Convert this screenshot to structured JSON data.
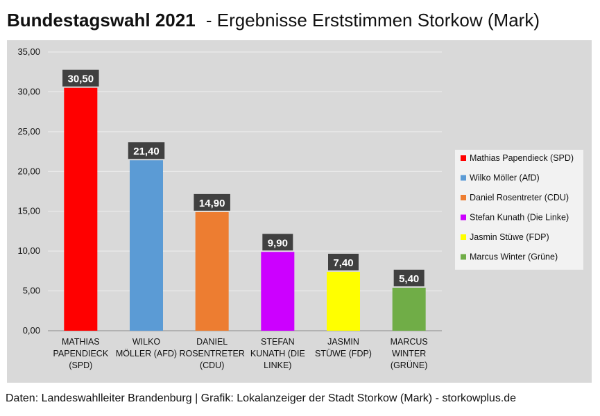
{
  "header": {
    "title_bold": "Bundestagswahl 2021",
    "title_rest": " - Ergebnisse Erststimmen Storkow (Mark)"
  },
  "footer": {
    "source": "Daten: Landeswahlleiter Brandenburg | Grafik: Lokalanzeiger der Stadt Storkow (Mark) - storkowplus.de"
  },
  "chart_data": {
    "type": "bar",
    "categories": [
      [
        "MATHIAS",
        "PAPENDIECK",
        "(SPD)"
      ],
      [
        "WILKO",
        "MÖLLER (AFD)"
      ],
      [
        "DANIEL",
        "ROSENTRETER",
        "(CDU)"
      ],
      [
        "STEFAN",
        "KUNATH (DIE",
        "LINKE)"
      ],
      [
        "JASMIN",
        "STÜWE (FDP)"
      ],
      [
        "MARCUS",
        "WINTER",
        "(GRÜNE)"
      ]
    ],
    "values": [
      30.5,
      21.4,
      14.9,
      9.9,
      7.4,
      5.4
    ],
    "data_labels": [
      "30,50",
      "21,40",
      "14,90",
      "9,90",
      "7,40",
      "5,40"
    ],
    "colors": [
      "#ff0000",
      "#5b9bd5",
      "#ed7d31",
      "#cc00ff",
      "#ffff00",
      "#70ad47"
    ],
    "legend": [
      "Mathias Papendieck (SPD)",
      "Wilko Möller (AfD)",
      "Daniel Rosentreter (CDU)",
      "Stefan Kunath (Die Linke)",
      "Jasmin Stüwe (FDP)",
      "Marcus Winter (Grüne)"
    ],
    "yticks": [
      "0,00",
      "5,00",
      "10,00",
      "15,00",
      "20,00",
      "25,00",
      "30,00",
      "35,00"
    ],
    "ylim": [
      0,
      35
    ],
    "grid": true,
    "legend_position": "right"
  }
}
